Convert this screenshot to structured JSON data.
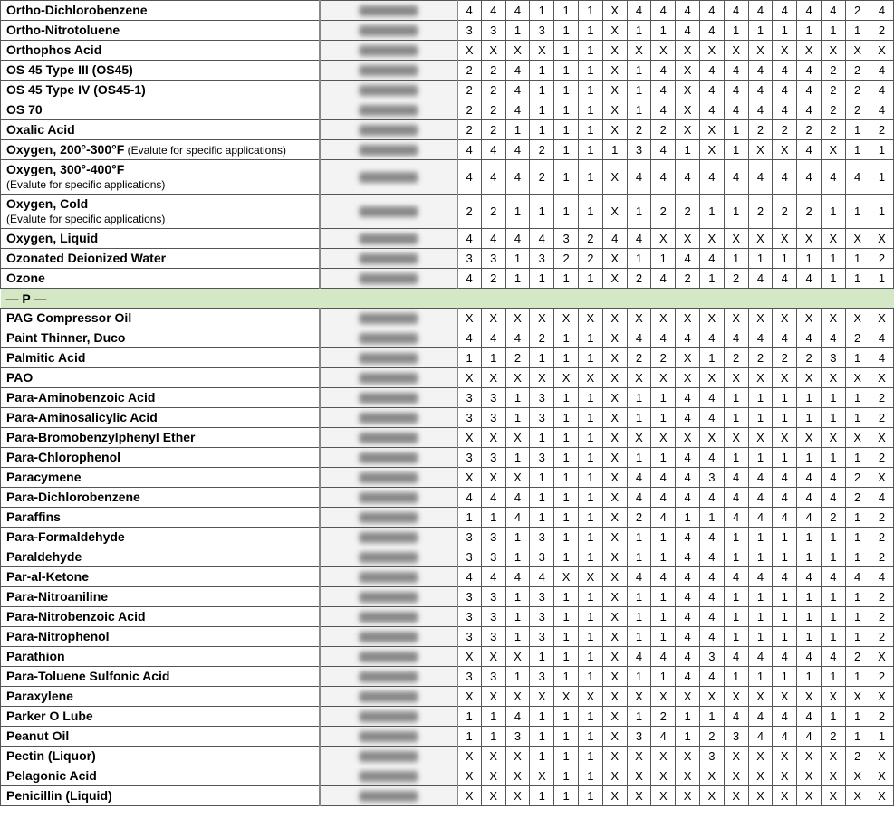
{
  "colors": {
    "background": "#ffffff",
    "border": "#555555",
    "section_bg": "#d5e8c5",
    "placeholder_bg": "#f3f3f3",
    "blur": "#777777"
  },
  "column_count": 18,
  "section_label": "— P —",
  "rows": [
    {
      "name": "Ortho-Dichlorobenzene",
      "ratings": [
        "4",
        "4",
        "4",
        "1",
        "1",
        "1",
        "X",
        "4",
        "4",
        "4",
        "4",
        "4",
        "4",
        "4",
        "4",
        "4",
        "2",
        "4"
      ]
    },
    {
      "name": "Ortho-Nitrotoluene",
      "ratings": [
        "3",
        "3",
        "1",
        "3",
        "1",
        "1",
        "X",
        "1",
        "1",
        "4",
        "4",
        "1",
        "1",
        "1",
        "1",
        "1",
        "1",
        "2"
      ]
    },
    {
      "name": "Orthophos Acid",
      "ratings": [
        "X",
        "X",
        "X",
        "X",
        "1",
        "1",
        "X",
        "X",
        "X",
        "X",
        "X",
        "X",
        "X",
        "X",
        "X",
        "X",
        "X",
        "X"
      ]
    },
    {
      "name": "OS 45 Type III (OS45)",
      "ratings": [
        "2",
        "2",
        "4",
        "1",
        "1",
        "1",
        "X",
        "1",
        "4",
        "X",
        "4",
        "4",
        "4",
        "4",
        "4",
        "2",
        "2",
        "4"
      ]
    },
    {
      "name": "OS 45 Type IV (OS45-1)",
      "ratings": [
        "2",
        "2",
        "4",
        "1",
        "1",
        "1",
        "X",
        "1",
        "4",
        "X",
        "4",
        "4",
        "4",
        "4",
        "4",
        "2",
        "2",
        "4"
      ]
    },
    {
      "name": "OS 70",
      "ratings": [
        "2",
        "2",
        "4",
        "1",
        "1",
        "1",
        "X",
        "1",
        "4",
        "X",
        "4",
        "4",
        "4",
        "4",
        "4",
        "2",
        "2",
        "4"
      ]
    },
    {
      "name": "Oxalic Acid",
      "ratings": [
        "2",
        "2",
        "1",
        "1",
        "1",
        "1",
        "X",
        "2",
        "2",
        "X",
        "X",
        "1",
        "2",
        "2",
        "2",
        "2",
        "1",
        "2"
      ]
    },
    {
      "name": "Oxygen, 200°-300°F",
      "sub": "(Evalute for specific applications)",
      "ratings": [
        "4",
        "4",
        "4",
        "2",
        "1",
        "1",
        "1",
        "3",
        "4",
        "1",
        "X",
        "1",
        "X",
        "X",
        "4",
        "X",
        "1",
        "1"
      ]
    },
    {
      "name": "Oxygen, 300°-400°F",
      "sub_below": "(Evalute for specific applications)",
      "tall": true,
      "ratings": [
        "4",
        "4",
        "4",
        "2",
        "1",
        "1",
        "X",
        "4",
        "4",
        "4",
        "4",
        "4",
        "4",
        "4",
        "4",
        "4",
        "4",
        "1"
      ]
    },
    {
      "name": "Oxygen, Cold",
      "sub_below": "(Evalute for specific applications)",
      "tall": true,
      "ratings": [
        "2",
        "2",
        "1",
        "1",
        "1",
        "1",
        "X",
        "1",
        "2",
        "2",
        "1",
        "1",
        "2",
        "2",
        "2",
        "1",
        "1",
        "1"
      ]
    },
    {
      "name": "Oxygen, Liquid",
      "ratings": [
        "4",
        "4",
        "4",
        "4",
        "3",
        "2",
        "4",
        "4",
        "X",
        "X",
        "X",
        "X",
        "X",
        "X",
        "X",
        "X",
        "X",
        "X"
      ]
    },
    {
      "name": "Ozonated Deionized Water",
      "ratings": [
        "3",
        "3",
        "1",
        "3",
        "2",
        "2",
        "X",
        "1",
        "1",
        "4",
        "4",
        "1",
        "1",
        "1",
        "1",
        "1",
        "1",
        "2"
      ]
    },
    {
      "name": "Ozone",
      "ratings": [
        "4",
        "2",
        "1",
        "1",
        "1",
        "1",
        "X",
        "2",
        "4",
        "2",
        "1",
        "2",
        "4",
        "4",
        "4",
        "1",
        "1",
        "1"
      ]
    },
    {
      "type": "section"
    },
    {
      "name": "PAG Compressor Oil",
      "ratings": [
        "X",
        "X",
        "X",
        "X",
        "X",
        "X",
        "X",
        "X",
        "X",
        "X",
        "X",
        "X",
        "X",
        "X",
        "X",
        "X",
        "X",
        "X"
      ]
    },
    {
      "name": "Paint Thinner, Duco",
      "ratings": [
        "4",
        "4",
        "4",
        "2",
        "1",
        "1",
        "X",
        "4",
        "4",
        "4",
        "4",
        "4",
        "4",
        "4",
        "4",
        "4",
        "2",
        "4"
      ]
    },
    {
      "name": "Palmitic Acid",
      "ratings": [
        "1",
        "1",
        "2",
        "1",
        "1",
        "1",
        "X",
        "2",
        "2",
        "X",
        "1",
        "2",
        "2",
        "2",
        "2",
        "3",
        "1",
        "4"
      ]
    },
    {
      "name": "PAO",
      "ratings": [
        "X",
        "X",
        "X",
        "X",
        "X",
        "X",
        "X",
        "X",
        "X",
        "X",
        "X",
        "X",
        "X",
        "X",
        "X",
        "X",
        "X",
        "X"
      ]
    },
    {
      "name": "Para-Aminobenzoic Acid",
      "ratings": [
        "3",
        "3",
        "1",
        "3",
        "1",
        "1",
        "X",
        "1",
        "1",
        "4",
        "4",
        "1",
        "1",
        "1",
        "1",
        "1",
        "1",
        "2"
      ]
    },
    {
      "name": "Para-Aminosalicylic Acid",
      "ratings": [
        "3",
        "3",
        "1",
        "3",
        "1",
        "1",
        "X",
        "1",
        "1",
        "4",
        "4",
        "1",
        "1",
        "1",
        "1",
        "1",
        "1",
        "2"
      ]
    },
    {
      "name": "Para-Bromobenzylphenyl Ether",
      "ratings": [
        "X",
        "X",
        "X",
        "1",
        "1",
        "1",
        "X",
        "X",
        "X",
        "X",
        "X",
        "X",
        "X",
        "X",
        "X",
        "X",
        "X",
        "X"
      ]
    },
    {
      "name": "Para-Chlorophenol",
      "ratings": [
        "3",
        "3",
        "1",
        "3",
        "1",
        "1",
        "X",
        "1",
        "1",
        "4",
        "4",
        "1",
        "1",
        "1",
        "1",
        "1",
        "1",
        "2"
      ]
    },
    {
      "name": "Paracymene",
      "ratings": [
        "X",
        "X",
        "X",
        "1",
        "1",
        "1",
        "X",
        "4",
        "4",
        "4",
        "3",
        "4",
        "4",
        "4",
        "4",
        "4",
        "2",
        "X"
      ]
    },
    {
      "name": "Para-Dichlorobenzene",
      "ratings": [
        "4",
        "4",
        "4",
        "1",
        "1",
        "1",
        "X",
        "4",
        "4",
        "4",
        "4",
        "4",
        "4",
        "4",
        "4",
        "4",
        "2",
        "4"
      ]
    },
    {
      "name": "Paraffins",
      "ratings": [
        "1",
        "1",
        "4",
        "1",
        "1",
        "1",
        "X",
        "2",
        "4",
        "1",
        "1",
        "4",
        "4",
        "4",
        "4",
        "2",
        "1",
        "2"
      ]
    },
    {
      "name": "Para-Formaldehyde",
      "ratings": [
        "3",
        "3",
        "1",
        "3",
        "1",
        "1",
        "X",
        "1",
        "1",
        "4",
        "4",
        "1",
        "1",
        "1",
        "1",
        "1",
        "1",
        "2"
      ]
    },
    {
      "name": "Paraldehyde",
      "ratings": [
        "3",
        "3",
        "1",
        "3",
        "1",
        "1",
        "X",
        "1",
        "1",
        "4",
        "4",
        "1",
        "1",
        "1",
        "1",
        "1",
        "1",
        "2"
      ]
    },
    {
      "name": "Par-al-Ketone",
      "ratings": [
        "4",
        "4",
        "4",
        "4",
        "X",
        "X",
        "X",
        "4",
        "4",
        "4",
        "4",
        "4",
        "4",
        "4",
        "4",
        "4",
        "4",
        "4"
      ]
    },
    {
      "name": "Para-Nitroaniline",
      "ratings": [
        "3",
        "3",
        "1",
        "3",
        "1",
        "1",
        "X",
        "1",
        "1",
        "4",
        "4",
        "1",
        "1",
        "1",
        "1",
        "1",
        "1",
        "2"
      ]
    },
    {
      "name": "Para-Nitrobenzoic Acid",
      "ratings": [
        "3",
        "3",
        "1",
        "3",
        "1",
        "1",
        "X",
        "1",
        "1",
        "4",
        "4",
        "1",
        "1",
        "1",
        "1",
        "1",
        "1",
        "2"
      ]
    },
    {
      "name": "Para-Nitrophenol",
      "ratings": [
        "3",
        "3",
        "1",
        "3",
        "1",
        "1",
        "X",
        "1",
        "1",
        "4",
        "4",
        "1",
        "1",
        "1",
        "1",
        "1",
        "1",
        "2"
      ]
    },
    {
      "name": "Parathion",
      "ratings": [
        "X",
        "X",
        "X",
        "1",
        "1",
        "1",
        "X",
        "4",
        "4",
        "4",
        "3",
        "4",
        "4",
        "4",
        "4",
        "4",
        "2",
        "X"
      ]
    },
    {
      "name": "Para-Toluene Sulfonic Acid",
      "ratings": [
        "3",
        "3",
        "1",
        "3",
        "1",
        "1",
        "X",
        "1",
        "1",
        "4",
        "4",
        "1",
        "1",
        "1",
        "1",
        "1",
        "1",
        "2"
      ]
    },
    {
      "name": "Paraxylene",
      "ratings": [
        "X",
        "X",
        "X",
        "X",
        "X",
        "X",
        "X",
        "X",
        "X",
        "X",
        "X",
        "X",
        "X",
        "X",
        "X",
        "X",
        "X",
        "X"
      ]
    },
    {
      "name": "Parker O Lube",
      "ratings": [
        "1",
        "1",
        "4",
        "1",
        "1",
        "1",
        "X",
        "1",
        "2",
        "1",
        "1",
        "4",
        "4",
        "4",
        "4",
        "1",
        "1",
        "2"
      ]
    },
    {
      "name": "Peanut Oil",
      "ratings": [
        "1",
        "1",
        "3",
        "1",
        "1",
        "1",
        "X",
        "3",
        "4",
        "1",
        "2",
        "3",
        "4",
        "4",
        "4",
        "2",
        "1",
        "1"
      ]
    },
    {
      "name": "Pectin (Liquor)",
      "ratings": [
        "X",
        "X",
        "X",
        "1",
        "1",
        "1",
        "X",
        "X",
        "X",
        "X",
        "3",
        "X",
        "X",
        "X",
        "X",
        "X",
        "2",
        "X"
      ]
    },
    {
      "name": "Pelagonic Acid",
      "ratings": [
        "X",
        "X",
        "X",
        "X",
        "1",
        "1",
        "X",
        "X",
        "X",
        "X",
        "X",
        "X",
        "X",
        "X",
        "X",
        "X",
        "X",
        "X"
      ]
    },
    {
      "name": "Penicillin (Liquid)",
      "ratings": [
        "X",
        "X",
        "X",
        "1",
        "1",
        "1",
        "X",
        "X",
        "X",
        "X",
        "X",
        "X",
        "X",
        "X",
        "X",
        "X",
        "X",
        "X"
      ]
    }
  ]
}
